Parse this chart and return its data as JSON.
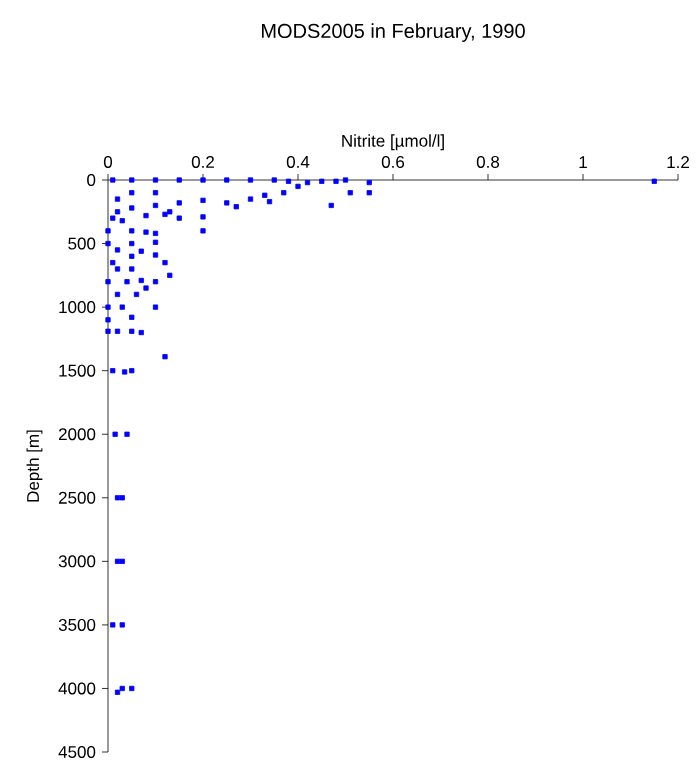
{
  "chart_data": {
    "type": "scatter",
    "title": "MODS2005 in February, 1990",
    "xlabel": "Nitrite [µmol/l]",
    "ylabel": "Depth [m]",
    "xlim": [
      0,
      1.2
    ],
    "ylim": [
      4500,
      0
    ],
    "xticks": [
      0,
      0.2,
      0.4,
      0.6,
      0.8,
      1,
      1.2
    ],
    "yticks": [
      0,
      500,
      1000,
      1500,
      2000,
      2500,
      3000,
      3500,
      4000,
      4500
    ],
    "marker": "square",
    "series": [
      {
        "color": "#0000ff",
        "x": [
          0.01,
          0.05,
          0.1,
          0.15,
          0.2,
          0.25,
          0.3,
          0.35,
          0.38,
          0.42,
          0.45,
          0.48,
          0.5,
          0.55,
          0.55,
          0.51,
          0.47,
          0.4,
          0.37,
          0.34,
          0.3,
          0.25,
          0.2,
          0.15,
          0.1,
          0.05,
          0.02,
          0.01,
          0.03,
          0.08,
          0.12,
          0.15,
          0.2,
          0.2,
          0.13,
          1.15,
          0.27,
          0.33,
          0.05,
          0.1,
          0.02,
          0.0,
          0.05,
          0.08,
          0.1,
          0.0,
          0.05,
          0.1,
          0.02,
          0.07,
          0.1,
          0.05,
          0.01,
          0.12,
          0.13,
          0.02,
          0.05,
          0.0,
          0.04,
          0.07,
          0.1,
          0.02,
          0.06,
          0.08,
          0.0,
          0.03,
          0.1,
          0.0,
          0.05,
          0.0,
          0.02,
          0.05,
          0.07,
          0.12,
          0.01,
          0.035,
          0.05,
          0.015,
          0.04,
          0.02,
          0.03,
          0.02,
          0.03,
          0.01,
          0.03,
          0.02,
          0.03,
          0.05
        ],
        "values": [
          0,
          0,
          0,
          0,
          0,
          0,
          0,
          0,
          10,
          20,
          10,
          10,
          0,
          20,
          100,
          100,
          200,
          50,
          100,
          170,
          150,
          180,
          160,
          180,
          200,
          220,
          250,
          300,
          320,
          280,
          270,
          300,
          290,
          400,
          250,
          10,
          210,
          120,
          100,
          100,
          150,
          400,
          400,
          410,
          420,
          500,
          500,
          490,
          550,
          560,
          590,
          600,
          650,
          650,
          750,
          700,
          700,
          800,
          800,
          790,
          800,
          900,
          900,
          850,
          1000,
          1000,
          1000,
          1100,
          1080,
          1190,
          1190,
          1190,
          1200,
          1390,
          1500,
          1510,
          1500,
          2000,
          2000,
          2500,
          2500,
          3000,
          3000,
          3500,
          3500,
          4030,
          4000,
          4000
        ]
      }
    ]
  }
}
